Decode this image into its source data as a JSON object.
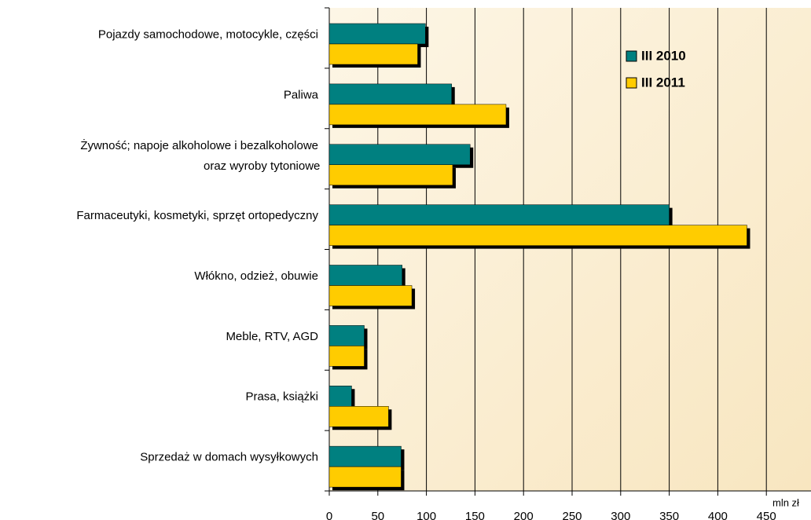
{
  "chart_data": {
    "type": "bar",
    "orientation": "horizontal",
    "categories": [
      "Pojazdy samochodowe, motocykle, części",
      "Paliwa",
      "Żywność; napoje alkoholowe i bezalkoholowe\noraz wyroby tytoniowe",
      "Farmaceutyki, kosmetyki, sprzęt ortopedyczny",
      "Włókno, odzież, obuwie",
      "Meble, RTV, AGD",
      "Prasa, książki",
      "Sprzedaż w domach wysyłkowych"
    ],
    "series": [
      {
        "name": "III 2010",
        "color": "#008080",
        "values": [
          99,
          126,
          145,
          350,
          75,
          36,
          23,
          74
        ]
      },
      {
        "name": "III 2011",
        "color": "#ffcc00",
        "values": [
          91,
          182,
          127,
          430,
          85,
          36,
          61,
          74
        ]
      }
    ],
    "x_label": "mln zł",
    "xlim": [
      0,
      495
    ],
    "xticks": [
      0,
      50,
      100,
      150,
      200,
      250,
      300,
      350,
      400,
      450
    ],
    "grid": true,
    "legend": "upper right"
  }
}
